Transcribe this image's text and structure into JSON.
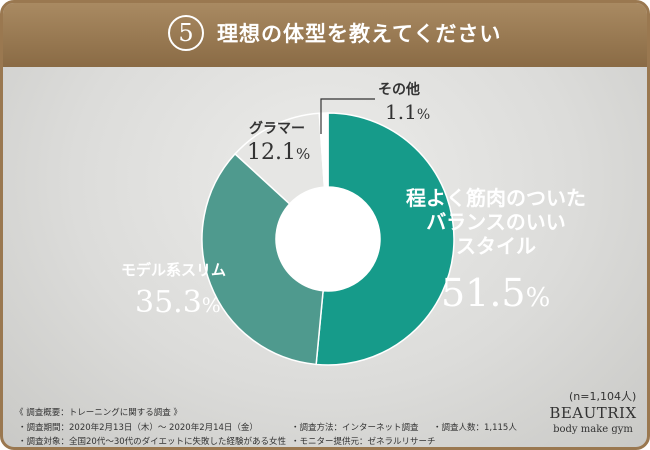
{
  "header": {
    "number": "5",
    "title": "理想の体型を教えてください"
  },
  "chart_data": {
    "type": "pie",
    "donut": true,
    "categories": [
      "程よく筋肉のついたバランスのいいスタイル",
      "モデル系スリム",
      "グラマー",
      "その他"
    ],
    "values": [
      51.5,
      35.3,
      12.1,
      1.1
    ],
    "unit": "%",
    "colors": [
      "#169b8a",
      "#4f9a8e",
      "#e6e6e4",
      "#ffffff"
    ]
  },
  "labels": {
    "balanced": {
      "name_lines": [
        "程よく筋肉のついた",
        "バランスのいい",
        "スタイル"
      ],
      "value_num": "51.5",
      "value_unit": "%"
    },
    "slim": {
      "name": "モデル系スリム",
      "value_num": "35.3",
      "value_unit": "%"
    },
    "glamour": {
      "name": "グラマー",
      "value_num": "12.1",
      "value_unit": "%"
    },
    "other": {
      "name": "その他",
      "value_num": "1.1",
      "value_unit": "%"
    }
  },
  "sample_size": "(n=1,104人)",
  "footer": {
    "heading": "《 調査概要：トレーニングに関する調査 》",
    "period": "・調査期間：2020年2月13日（木）〜 2020年2月14日（金）",
    "method": "・調査方法：インターネット調査",
    "count": "・調査人数：1,115人",
    "target": "・調査対象：全国20代〜30代のダイエットに失敗した経験がある女性",
    "provider": "・モニター提供元：ゼネラルリサーチ"
  },
  "brand": {
    "name": "BEAUTRIX",
    "tagline": "body make gym"
  }
}
